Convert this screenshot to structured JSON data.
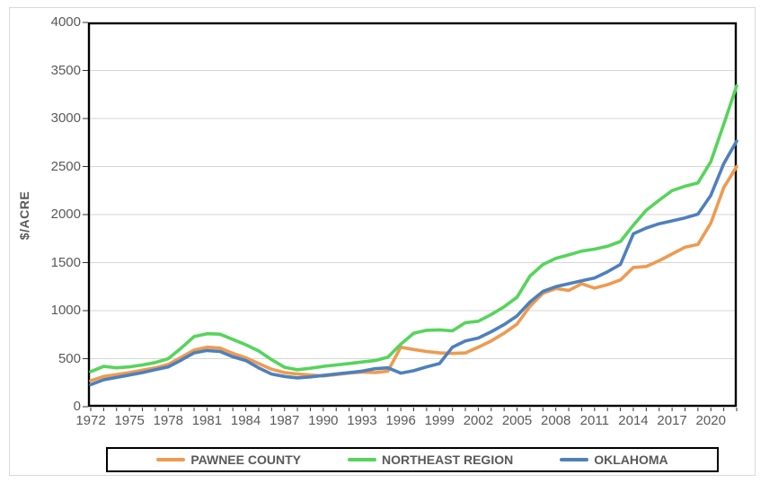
{
  "chart_data": {
    "type": "line",
    "ylabel": "$/ACRE",
    "ylim": [
      0,
      4000
    ],
    "ytick_step": 500,
    "xtick_label_every": 3,
    "xtick_label_max": 2020,
    "grid": "horizontal",
    "legend_position": "bottom",
    "x": [
      1972,
      1973,
      1974,
      1975,
      1976,
      1977,
      1978,
      1979,
      1980,
      1981,
      1982,
      1983,
      1984,
      1985,
      1986,
      1987,
      1988,
      1989,
      1990,
      1991,
      1992,
      1993,
      1994,
      1995,
      1996,
      1997,
      1998,
      1999,
      2000,
      2001,
      2002,
      2003,
      2004,
      2005,
      2006,
      2007,
      2008,
      2009,
      2010,
      2011,
      2012,
      2013,
      2014,
      2015,
      2016,
      2017,
      2018,
      2019,
      2020,
      2021,
      2022
    ],
    "series": [
      {
        "name": "PAWNEE COUNTY",
        "color": "#ED9B51",
        "values": [
          270,
          315,
          335,
          355,
          380,
          405,
          440,
          515,
          590,
          620,
          610,
          555,
          510,
          450,
          390,
          355,
          340,
          330,
          320,
          335,
          350,
          360,
          355,
          370,
          620,
          595,
          575,
          560,
          555,
          560,
          620,
          685,
          765,
          860,
          1045,
          1180,
          1230,
          1210,
          1280,
          1235,
          1270,
          1320,
          1450,
          1460,
          1520,
          1590,
          1660,
          1690,
          1910,
          2280,
          2500
        ]
      },
      {
        "name": "NORTHEAST REGION",
        "color": "#56D45B",
        "values": [
          365,
          420,
          405,
          415,
          435,
          460,
          500,
          610,
          730,
          760,
          755,
          700,
          645,
          580,
          490,
          410,
          385,
          400,
          420,
          435,
          450,
          465,
          480,
          515,
          650,
          765,
          795,
          800,
          790,
          875,
          890,
          960,
          1040,
          1140,
          1360,
          1480,
          1545,
          1580,
          1620,
          1640,
          1670,
          1720,
          1890,
          2045,
          2150,
          2250,
          2295,
          2330,
          2550,
          2940,
          3340
        ]
      },
      {
        "name": "OKLAHOMA",
        "color": "#4E80BC",
        "values": [
          230,
          280,
          305,
          330,
          355,
          385,
          415,
          485,
          560,
          585,
          575,
          520,
          480,
          405,
          340,
          315,
          300,
          310,
          325,
          340,
          355,
          370,
          395,
          405,
          350,
          375,
          415,
          450,
          620,
          685,
          715,
          780,
          855,
          945,
          1090,
          1200,
          1250,
          1280,
          1310,
          1340,
          1405,
          1480,
          1800,
          1860,
          1905,
          1935,
          1965,
          2005,
          2200,
          2530,
          2765
        ]
      }
    ],
    "colors": {
      "gridline": "#D6D6D6",
      "plot_border": "#000000",
      "axis_text": "#595959",
      "frame_border": "#D9D9D9",
      "tick": "#333333"
    }
  }
}
